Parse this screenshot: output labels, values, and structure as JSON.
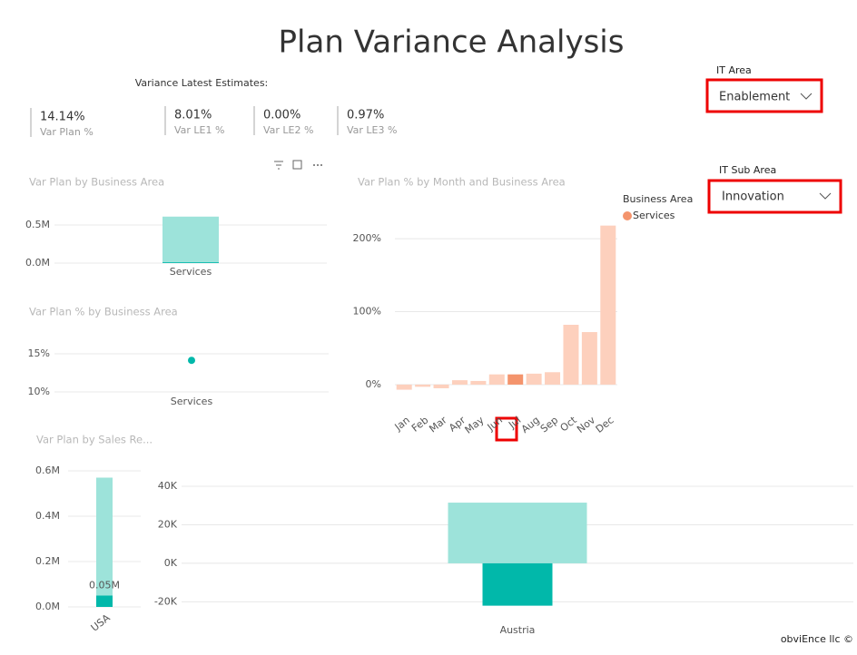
{
  "header": {
    "title": "Plan Variance Analysis"
  },
  "kpis": {
    "heading": "Variance Latest Estimates:",
    "items": [
      {
        "value": "14.14%",
        "label": "Var Plan %"
      },
      {
        "value": "8.01%",
        "label": "Var LE1 %"
      },
      {
        "value": "0.00%",
        "label": "Var LE2 %"
      },
      {
        "value": "0.97%",
        "label": "Var LE3 %"
      }
    ]
  },
  "slicers": [
    {
      "label": "IT Area",
      "value": "Enablement"
    },
    {
      "label": "IT Sub Area",
      "value": "Innovation"
    }
  ],
  "footer": "obviEnce llc ©",
  "chart_data": [
    {
      "type": "bar",
      "title": "Var Plan by Business Area",
      "categories": [
        "Services"
      ],
      "series": [
        {
          "color": "#9de3da",
          "values": [
            610000
          ]
        },
        {
          "color": "#01b8aa",
          "values": [
            10000
          ]
        }
      ],
      "ylim": [
        0,
        650000
      ],
      "yticks": [
        {
          "value": 0,
          "label": "0.0M"
        },
        {
          "value": 500000,
          "label": "0.5M"
        }
      ],
      "grid": true
    },
    {
      "type": "line",
      "title": "Var Plan % by Business Area",
      "categories": [
        "Services"
      ],
      "series": [
        {
          "color": "#01b8aa",
          "values": [
            14.14
          ]
        }
      ],
      "ylim": [
        8,
        17
      ],
      "yticks": [
        {
          "value": 10,
          "label": "10%"
        },
        {
          "value": 15,
          "label": "15%"
        }
      ],
      "grid": true
    },
    {
      "type": "bar",
      "title": "Var Plan % by Month and Business Area",
      "legend_title": "Business Area",
      "categories": [
        "Jan",
        "Feb",
        "Mar",
        "Apr",
        "May",
        "Jun",
        "Jul",
        "Aug",
        "Sep",
        "Oct",
        "Nov",
        "Dec"
      ],
      "series": [
        {
          "name": "Services",
          "color": "#f4946c",
          "values": [
            -7,
            -3,
            -5,
            6,
            5,
            14,
            14,
            15,
            17,
            82,
            72,
            218
          ],
          "point_colors": [
            "#fdd0bd",
            "#fdd0bd",
            "#fdd0bd",
            "#fdd0bd",
            "#fdd0bd",
            "#fdd0bd",
            "#f4946c",
            "#fdd0bd",
            "#fdd0bd",
            "#fdd0bd",
            "#fdd0bd",
            "#fdd0bd"
          ]
        }
      ],
      "ylim": [
        -15,
        235
      ],
      "yticks": [
        {
          "value": 0,
          "label": "0%"
        },
        {
          "value": 100,
          "label": "100%"
        },
        {
          "value": 200,
          "label": "200%"
        }
      ],
      "grid": true
    },
    {
      "type": "bar",
      "title": "Var Plan by Sales Re...",
      "categories": [
        "USA"
      ],
      "series": [
        {
          "color": "#9de3da",
          "values": [
            570000
          ]
        },
        {
          "color": "#01b8aa",
          "values": [
            50000
          ],
          "value_labels": [
            "0.05M"
          ]
        }
      ],
      "ylim": [
        0,
        650000
      ],
      "yticks": [
        {
          "value": 0,
          "label": "0.0M"
        },
        {
          "value": 200000,
          "label": "0.2M"
        },
        {
          "value": 400000,
          "label": "0.4M"
        },
        {
          "value": 600000,
          "label": "0.6M"
        }
      ],
      "grid": true
    },
    {
      "type": "bar",
      "categories": [
        "Austria"
      ],
      "series": [
        {
          "color": "#9de3da",
          "values": [
            31500
          ]
        },
        {
          "color": "#01b8aa",
          "values": [
            -22000
          ]
        }
      ],
      "ylim": [
        -25000,
        45000
      ],
      "yticks": [
        {
          "value": -20000,
          "label": "-20K"
        },
        {
          "value": 0,
          "label": "0K"
        },
        {
          "value": 20000,
          "label": "20K"
        },
        {
          "value": 40000,
          "label": "40K"
        }
      ],
      "grid": true
    }
  ]
}
